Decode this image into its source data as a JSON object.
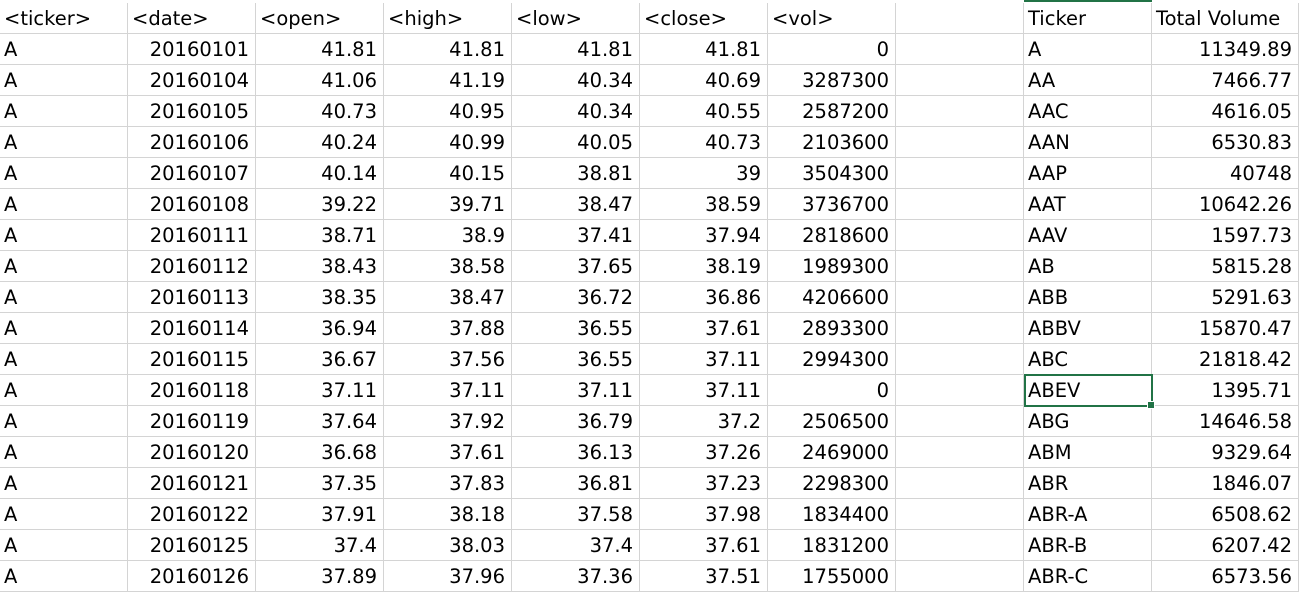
{
  "sheet": {
    "left_table": {
      "headers": [
        "<ticker>",
        "<date>",
        "<open>",
        "<high>",
        "<low>",
        "<close>",
        "<vol>"
      ],
      "rows": [
        [
          "A",
          "20160101",
          "41.81",
          "41.81",
          "41.81",
          "41.81",
          "0"
        ],
        [
          "A",
          "20160104",
          "41.06",
          "41.19",
          "40.34",
          "40.69",
          "3287300"
        ],
        [
          "A",
          "20160105",
          "40.73",
          "40.95",
          "40.34",
          "40.55",
          "2587200"
        ],
        [
          "A",
          "20160106",
          "40.24",
          "40.99",
          "40.05",
          "40.73",
          "2103600"
        ],
        [
          "A",
          "20160107",
          "40.14",
          "40.15",
          "38.81",
          "39",
          "3504300"
        ],
        [
          "A",
          "20160108",
          "39.22",
          "39.71",
          "38.47",
          "38.59",
          "3736700"
        ],
        [
          "A",
          "20160111",
          "38.71",
          "38.9",
          "37.41",
          "37.94",
          "2818600"
        ],
        [
          "A",
          "20160112",
          "38.43",
          "38.58",
          "37.65",
          "38.19",
          "1989300"
        ],
        [
          "A",
          "20160113",
          "38.35",
          "38.47",
          "36.72",
          "36.86",
          "4206600"
        ],
        [
          "A",
          "20160114",
          "36.94",
          "37.88",
          "36.55",
          "37.61",
          "2893300"
        ],
        [
          "A",
          "20160115",
          "36.67",
          "37.56",
          "36.55",
          "37.11",
          "2994300"
        ],
        [
          "A",
          "20160118",
          "37.11",
          "37.11",
          "37.11",
          "37.11",
          "0"
        ],
        [
          "A",
          "20160119",
          "37.64",
          "37.92",
          "36.79",
          "37.2",
          "2506500"
        ],
        [
          "A",
          "20160120",
          "36.68",
          "37.61",
          "36.13",
          "37.26",
          "2469000"
        ],
        [
          "A",
          "20160121",
          "37.35",
          "37.83",
          "36.81",
          "37.23",
          "2298300"
        ],
        [
          "A",
          "20160122",
          "37.91",
          "38.18",
          "37.58",
          "37.98",
          "1834400"
        ],
        [
          "A",
          "20160125",
          "37.4",
          "38.03",
          "37.4",
          "37.61",
          "1831200"
        ],
        [
          "A",
          "20160126",
          "37.89",
          "37.96",
          "37.36",
          "37.51",
          "1755000"
        ]
      ]
    },
    "right_table": {
      "headers": [
        "Ticker",
        "Total Volume"
      ],
      "rows": [
        [
          "A",
          "11349.89"
        ],
        [
          "AA",
          "7466.77"
        ],
        [
          "AAC",
          "4616.05"
        ],
        [
          "AAN",
          "6530.83"
        ],
        [
          "AAP",
          "40748"
        ],
        [
          "AAT",
          "10642.26"
        ],
        [
          "AAV",
          "1597.73"
        ],
        [
          "AB",
          "5815.28"
        ],
        [
          "ABB",
          "5291.63"
        ],
        [
          "ABBV",
          "15870.47"
        ],
        [
          "ABC",
          "21818.42"
        ],
        [
          "ABEV",
          "1395.71"
        ],
        [
          "ABG",
          "14646.58"
        ],
        [
          "ABM",
          "9329.64"
        ],
        [
          "ABR",
          "1846.07"
        ],
        [
          "ABR-A",
          "6508.62"
        ],
        [
          "ABR-B",
          "6207.42"
        ],
        [
          "ABR-C",
          "6573.56"
        ]
      ]
    },
    "selected_cell": "ABEV",
    "accent_color": "#217346",
    "gridline_color": "#d4d4d4"
  }
}
